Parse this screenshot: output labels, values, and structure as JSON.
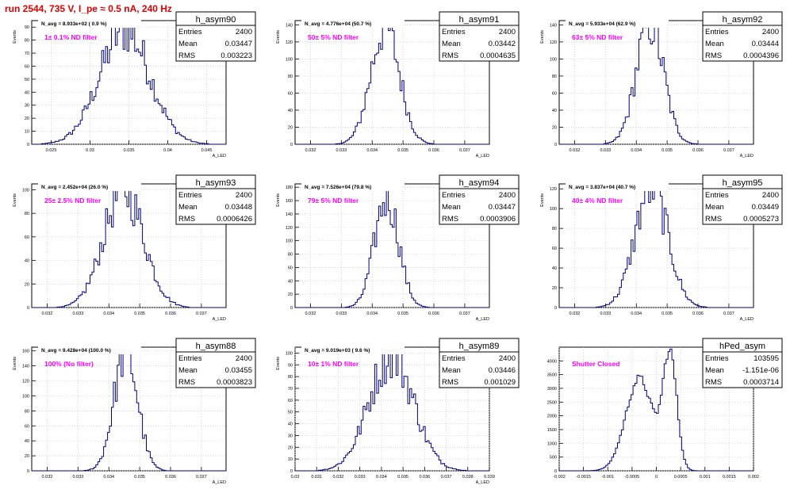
{
  "title": "run 2544,   735 V, I_pe ≈ 0.5 nA, 240 Hz",
  "colors": {
    "histogram": "#000080",
    "annotation": "#ff00ff",
    "title": "#e00000",
    "grid": "#c8c8c8"
  },
  "chart_data": [
    {
      "type": "histogram",
      "name": "h_asym90",
      "navg": "N_avg = 8.933e+02 ( 0.9 %)",
      "note": "1± 0.1% ND filter",
      "stats": [
        {
          "label": "Entries",
          "value": "2400"
        },
        {
          "label": "Mean",
          "value": "0.03447"
        },
        {
          "label": "RMS",
          "value": "0.003223"
        }
      ],
      "ylabel": "Events",
      "xlabel": "A_LED",
      "xlim": [
        0.0225,
        0.0475
      ],
      "ylim": [
        0,
        95
      ],
      "xticks": [
        0.025,
        0.03,
        0.035,
        0.04,
        0.045
      ],
      "xtick_labels": [
        "0.025",
        "0.03",
        "0.035",
        "0.04",
        "0.045"
      ],
      "yticks": [
        0,
        10,
        20,
        30,
        40,
        50,
        60,
        70,
        80,
        90
      ],
      "ytick_labels": [
        "0",
        "10",
        "20",
        "30",
        "40",
        "50",
        "60",
        "70",
        "80",
        "90"
      ],
      "mean": 0.03447,
      "rms": 0.003223,
      "peak": 88,
      "grid": true,
      "legend": "top-right"
    },
    {
      "type": "histogram",
      "name": "h_asym91",
      "navg": "N_avg = 4.776e+04 (50.7 %)",
      "note": "50± 5% ND filter",
      "stats": [
        {
          "label": "Entries",
          "value": "2400"
        },
        {
          "label": "Mean",
          "value": "0.03442"
        },
        {
          "label": "RMS",
          "value": "0.0004635"
        }
      ],
      "ylabel": "Events",
      "xlabel": "A_LED",
      "xlim": [
        0.0315,
        0.0378
      ],
      "ylim": [
        0,
        145
      ],
      "xticks": [
        0.032,
        0.033,
        0.034,
        0.035,
        0.036,
        0.037
      ],
      "xtick_labels": [
        "0.032",
        "0.033",
        "0.034",
        "0.035",
        "0.036",
        "0.037"
      ],
      "yticks": [
        0,
        20,
        40,
        60,
        80,
        100,
        120,
        140
      ],
      "ytick_labels": [
        "0",
        "20",
        "40",
        "60",
        "80",
        "100",
        "120",
        "140"
      ],
      "mean": 0.03442,
      "rms": 0.0004635,
      "peak": 138,
      "grid": true,
      "legend": "top-right"
    },
    {
      "type": "histogram",
      "name": "h_asym92",
      "navg": "N_avg = 5.933e+04 (62.9 %)",
      "note": "63± 5% ND filter",
      "stats": [
        {
          "label": "Entries",
          "value": "2400"
        },
        {
          "label": "Mean",
          "value": "0.03444"
        },
        {
          "label": "RMS",
          "value": "0.0004396"
        }
      ],
      "ylabel": "Events",
      "xlabel": "A_LED",
      "xlim": [
        0.0315,
        0.0378
      ],
      "ylim": [
        0,
        145
      ],
      "xticks": [
        0.032,
        0.033,
        0.034,
        0.035,
        0.036,
        0.037
      ],
      "xtick_labels": [
        "0.032",
        "0.033",
        "0.034",
        "0.035",
        "0.036",
        "0.037"
      ],
      "yticks": [
        0,
        20,
        40,
        60,
        80,
        100,
        120,
        140
      ],
      "ytick_labels": [
        "0",
        "20",
        "40",
        "60",
        "80",
        "100",
        "120",
        "140"
      ],
      "mean": 0.03444,
      "rms": 0.0004396,
      "peak": 142,
      "grid": true,
      "legend": "top-right"
    },
    {
      "type": "histogram",
      "name": "h_asym93",
      "navg": "N_avg = 2.452e+04 (26.0 %)",
      "note": "25± 2.5% ND filter",
      "stats": [
        {
          "label": "Entries",
          "value": "2400"
        },
        {
          "label": "Mean",
          "value": "0.03448"
        },
        {
          "label": "RMS",
          "value": "0.0006426"
        }
      ],
      "ylabel": "Events",
      "xlabel": "A_LED",
      "xlim": [
        0.0315,
        0.0378
      ],
      "ylim": [
        0,
        105
      ],
      "xticks": [
        0.032,
        0.033,
        0.034,
        0.035,
        0.036,
        0.037
      ],
      "xtick_labels": [
        "0.032",
        "0.033",
        "0.034",
        "0.035",
        "0.036",
        "0.037"
      ],
      "yticks": [
        0,
        20,
        40,
        60,
        80,
        100
      ],
      "ytick_labels": [
        "0",
        "20",
        "40",
        "60",
        "80",
        "100"
      ],
      "mean": 0.03448,
      "rms": 0.0006426,
      "peak": 100,
      "grid": true,
      "legend": "top-right"
    },
    {
      "type": "histogram",
      "name": "h_asym94",
      "navg": "N_avg = 7.526e+04 (79.8 %)",
      "note": "79± 5% ND filter",
      "stats": [
        {
          "label": "Entries",
          "value": "2400"
        },
        {
          "label": "Mean",
          "value": "0.03447"
        },
        {
          "label": "RMS",
          "value": "0.0003906"
        }
      ],
      "ylabel": "Events",
      "xlabel": "A_LED",
      "xlim": [
        0.0315,
        0.0378
      ],
      "ylim": [
        0,
        185
      ],
      "xticks": [
        0.032,
        0.033,
        0.034,
        0.035,
        0.036,
        0.037
      ],
      "xtick_labels": [
        "0.032",
        "0.033",
        "0.034",
        "0.035",
        "0.036",
        "0.037"
      ],
      "yticks": [
        0,
        20,
        40,
        60,
        80,
        100,
        120,
        140,
        160,
        180
      ],
      "ytick_labels": [
        "0",
        "20",
        "40",
        "60",
        "80",
        "100",
        "120",
        "140",
        "160",
        "180"
      ],
      "mean": 0.03447,
      "rms": 0.0003906,
      "peak": 165,
      "grid": true,
      "legend": "top-right"
    },
    {
      "type": "histogram",
      "name": "h_asym95",
      "navg": "N_avg = 3.837e+04 (40.7 %)",
      "note": "40± 4% ND filter",
      "stats": [
        {
          "label": "Entries",
          "value": "2400"
        },
        {
          "label": "Mean",
          "value": "0.03449"
        },
        {
          "label": "RMS",
          "value": "0.0005273"
        }
      ],
      "ylabel": "Events",
      "xlabel": "A_LED",
      "xlim": [
        0.0315,
        0.0378
      ],
      "ylim": [
        0,
        125
      ],
      "xticks": [
        0.032,
        0.033,
        0.034,
        0.035,
        0.036,
        0.037
      ],
      "xtick_labels": [
        "0.032",
        "0.033",
        "0.034",
        "0.035",
        "0.036",
        "0.037"
      ],
      "yticks": [
        0,
        20,
        40,
        60,
        80,
        100,
        120
      ],
      "ytick_labels": [
        "0",
        "20",
        "40",
        "60",
        "80",
        "100",
        "120"
      ],
      "mean": 0.03449,
      "rms": 0.0005273,
      "peak": 122,
      "grid": true,
      "legend": "top-right"
    },
    {
      "type": "histogram",
      "name": "h_asym88",
      "navg": "N_avg = 9.428e+04 (100.0 %)",
      "note": "100% (No filter)",
      "stats": [
        {
          "label": "Entries",
          "value": "2400"
        },
        {
          "label": "Mean",
          "value": "0.03455"
        },
        {
          "label": "RMS",
          "value": "0.0003823"
        }
      ],
      "ylabel": "Events",
      "xlabel": "A_LED",
      "xlim": [
        0.0315,
        0.0378
      ],
      "ylim": [
        0,
        165
      ],
      "xticks": [
        0.032,
        0.033,
        0.034,
        0.035,
        0.036,
        0.037
      ],
      "xtick_labels": [
        "0.032",
        "0.033",
        "0.034",
        "0.035",
        "0.036",
        "0.037"
      ],
      "yticks": [
        0,
        20,
        40,
        60,
        80,
        100,
        120,
        140,
        160
      ],
      "ytick_labels": [
        "0",
        "20",
        "40",
        "60",
        "80",
        "100",
        "120",
        "140",
        "160"
      ],
      "mean": 0.03455,
      "rms": 0.0003823,
      "peak": 160,
      "grid": true,
      "legend": "top-right"
    },
    {
      "type": "histogram",
      "name": "h_asym89",
      "navg": "N_avg = 9.019e+03 ( 9.6 %)",
      "note": "10± 1% ND filter",
      "stats": [
        {
          "label": "Entries",
          "value": "2400"
        },
        {
          "label": "Mean",
          "value": "0.03446"
        },
        {
          "label": "RMS",
          "value": "0.001029"
        }
      ],
      "ylabel": "Events",
      "xlabel": "A_LED",
      "xlim": [
        0.03,
        0.039
      ],
      "ylim": [
        0,
        105
      ],
      "xticks": [
        0.03,
        0.031,
        0.032,
        0.033,
        0.034,
        0.035,
        0.036,
        0.037,
        0.038,
        0.039
      ],
      "xtick_labels": [
        "0.03",
        "0.031",
        "0.032",
        "0.033",
        "0.034",
        "0.035",
        "0.036",
        "0.037",
        "0.038",
        "0.039"
      ],
      "yticks": [
        0,
        10,
        20,
        30,
        40,
        50,
        60,
        70,
        80,
        90,
        100
      ],
      "ytick_labels": [
        "0",
        "10",
        "20",
        "30",
        "40",
        "50",
        "60",
        "70",
        "80",
        "90",
        "100"
      ],
      "mean": 0.03446,
      "rms": 0.001029,
      "peak": 98,
      "grid": true,
      "legend": "top-right"
    },
    {
      "type": "histogram",
      "name": "hPed_asym",
      "navg": "",
      "note": "Shutter Closed",
      "stats": [
        {
          "label": "Entries",
          "value": "103595"
        },
        {
          "label": "Mean",
          "value": "-1.151e-06"
        },
        {
          "label": "RMS",
          "value": "0.0003714"
        }
      ],
      "ylabel": "",
      "xlabel": "",
      "xlim": [
        -0.002,
        0.002
      ],
      "ylim": [
        0,
        4500
      ],
      "xticks": [
        -0.002,
        -0.0015,
        -0.001,
        -0.0005,
        0,
        0.0005,
        0.001,
        0.0015,
        0.002
      ],
      "xtick_labels": [
        "-0.002",
        "-0.0015",
        "-0.001",
        "-0.0005",
        "0",
        "0.0005",
        "0.001",
        "0.0015",
        "0.002"
      ],
      "yticks": [
        0,
        500,
        1000,
        1500,
        2000,
        2500,
        3000,
        3500,
        4000
      ],
      "ytick_labels": [
        "0",
        "500",
        "1000",
        "1500",
        "2000",
        "2500",
        "3000",
        "3500",
        "4000"
      ],
      "mean": -1.15e-06,
      "rms": 0.0003714,
      "peak": 4300,
      "grid": true,
      "legend": "top-right",
      "shape": "double"
    }
  ]
}
